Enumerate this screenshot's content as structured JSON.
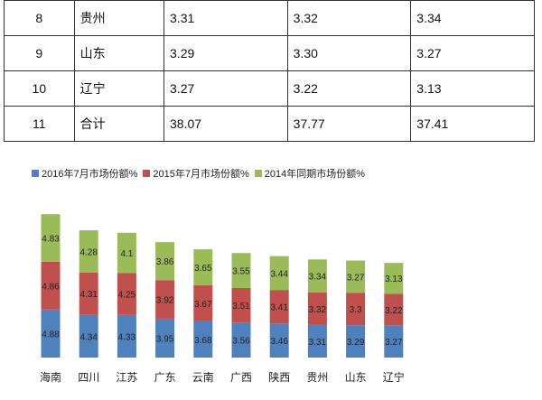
{
  "table": {
    "rows": [
      {
        "idx": "8",
        "name": "贵州",
        "v2016": "3.31",
        "v2015": "3.32",
        "v2014": "3.34"
      },
      {
        "idx": "9",
        "name": "山东",
        "v2016": "3.29",
        "v2015": "3.30",
        "v2014": "3.27"
      },
      {
        "idx": "10",
        "name": "辽宁",
        "v2016": "3.27",
        "v2015": "3.22",
        "v2014": "3.13"
      },
      {
        "idx": "11",
        "name": "合计",
        "v2016": "38.07",
        "v2015": "37.77",
        "v2014": "37.41"
      }
    ]
  },
  "chart_data": {
    "type": "bar",
    "stacked": true,
    "categories": [
      "海南",
      "四川",
      "江苏",
      "广东",
      "云南",
      "广西",
      "陕西",
      "贵州",
      "山东",
      "辽宁"
    ],
    "series": [
      {
        "name": "2016年7月市场份额%",
        "color": "#4f81bd",
        "values": [
          4.88,
          4.34,
          4.33,
          3.95,
          3.68,
          3.56,
          3.46,
          3.31,
          3.29,
          3.27
        ]
      },
      {
        "name": "2015年7月市场份额%",
        "color": "#c0504d",
        "values": [
          4.86,
          4.31,
          4.25,
          3.92,
          3.67,
          3.51,
          3.41,
          3.32,
          3.3,
          3.22
        ]
      },
      {
        "name": "2014年同期市场份额%",
        "color": "#9bbb59",
        "values": [
          4.83,
          4.28,
          4.1,
          3.86,
          3.65,
          3.55,
          3.44,
          3.34,
          3.27,
          3.13
        ]
      }
    ],
    "legend": "top",
    "grid": false
  }
}
